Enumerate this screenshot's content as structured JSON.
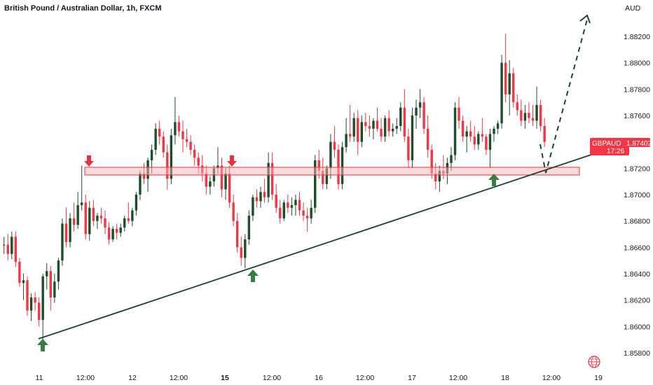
{
  "chart_data": {
    "type": "candlestick",
    "title": "British Pound / Australian Dollar, 1h, FXCM",
    "currency_label": "AUD",
    "symbol": "GBPAUD",
    "last_price": "1.87402",
    "countdown": "17:26",
    "ylim": [
      1.8572,
      1.8848
    ],
    "y_ticks": [
      "1.88200",
      "1.88000",
      "1.87800",
      "1.87600",
      "1.87400",
      "1.87200",
      "1.87000",
      "1.86800",
      "1.86600",
      "1.86400",
      "1.86200",
      "1.86000",
      "1.85800"
    ],
    "x_ticks": [
      {
        "label": "11",
        "bold": false
      },
      {
        "label": "12:00",
        "bold": false
      },
      {
        "label": "12",
        "bold": false
      },
      {
        "label": "12:00",
        "bold": false
      },
      {
        "label": "15",
        "bold": true
      },
      {
        "label": "12:00",
        "bold": false
      },
      {
        "label": "16",
        "bold": false
      },
      {
        "label": "12:00",
        "bold": false
      },
      {
        "label": "17",
        "bold": false
      },
      {
        "label": "12:00",
        "bold": false
      },
      {
        "label": "18",
        "bold": false
      },
      {
        "label": "12:00",
        "bold": false
      },
      {
        "label": "19",
        "bold": false
      }
    ],
    "candles": [
      [
        1.8662,
        1.8668,
        1.8655,
        1.8662
      ],
      [
        1.8662,
        1.867,
        1.865,
        1.8655
      ],
      [
        1.8655,
        1.8672,
        1.8651,
        1.8668
      ],
      [
        1.8668,
        1.8672,
        1.8645,
        1.8649
      ],
      [
        1.8649,
        1.8652,
        1.863,
        1.8633
      ],
      [
        1.8633,
        1.864,
        1.862,
        1.8635
      ],
      [
        1.8635,
        1.8638,
        1.8608,
        1.8612
      ],
      [
        1.8612,
        1.8625,
        1.8604,
        1.8622
      ],
      [
        1.8622,
        1.8626,
        1.8612,
        1.8618
      ],
      [
        1.8618,
        1.8622,
        1.86,
        1.8605
      ],
      [
        1.8605,
        1.864,
        1.859,
        1.8638
      ],
      [
        1.8638,
        1.8648,
        1.8628,
        1.8642
      ],
      [
        1.8642,
        1.8646,
        1.8612,
        1.8622
      ],
      [
        1.8622,
        1.864,
        1.8618,
        1.8634
      ],
      [
        1.8634,
        1.8652,
        1.8628,
        1.865
      ],
      [
        1.865,
        1.8682,
        1.8646,
        1.8678
      ],
      [
        1.8678,
        1.869,
        1.866,
        1.8664
      ],
      [
        1.8664,
        1.8686,
        1.866,
        1.8682
      ],
      [
        1.8682,
        1.8694,
        1.8672,
        1.8677
      ],
      [
        1.8677,
        1.8702,
        1.8674,
        1.8692
      ],
      [
        1.8692,
        1.8722,
        1.8688,
        1.8694
      ],
      [
        1.8694,
        1.87,
        1.8666,
        1.867
      ],
      [
        1.867,
        1.8695,
        1.8665,
        1.869
      ],
      [
        1.869,
        1.8696,
        1.8676,
        1.868
      ],
      [
        1.868,
        1.8686,
        1.8674,
        1.8684
      ],
      [
        1.8684,
        1.869,
        1.8678,
        1.8682
      ],
      [
        1.8682,
        1.8688,
        1.867,
        1.8675
      ],
      [
        1.8675,
        1.8679,
        1.8662,
        1.8666
      ],
      [
        1.8666,
        1.8676,
        1.8664,
        1.8674
      ],
      [
        1.8674,
        1.8678,
        1.8666,
        1.8671
      ],
      [
        1.8671,
        1.8678,
        1.8668,
        1.8675
      ],
      [
        1.8675,
        1.8684,
        1.8672,
        1.8682
      ],
      [
        1.8682,
        1.8694,
        1.8678,
        1.868
      ],
      [
        1.868,
        1.869,
        1.8676,
        1.8688
      ],
      [
        1.8688,
        1.8702,
        1.8684,
        1.87
      ],
      [
        1.87,
        1.8718,
        1.8696,
        1.8716
      ],
      [
        1.8716,
        1.8724,
        1.8708,
        1.8712
      ],
      [
        1.8712,
        1.8728,
        1.8702,
        1.8726
      ],
      [
        1.8726,
        1.8738,
        1.8716,
        1.8734
      ],
      [
        1.8734,
        1.8754,
        1.873,
        1.875
      ],
      [
        1.875,
        1.8756,
        1.8738,
        1.8744
      ],
      [
        1.8744,
        1.8748,
        1.8728,
        1.8732
      ],
      [
        1.8732,
        1.8738,
        1.8704,
        1.8712
      ],
      [
        1.8712,
        1.875,
        1.8708,
        1.8745
      ],
      [
        1.8745,
        1.8774,
        1.8738,
        1.8755
      ],
      [
        1.8755,
        1.876,
        1.8744,
        1.8748
      ],
      [
        1.8748,
        1.8756,
        1.8732,
        1.8742
      ],
      [
        1.8742,
        1.875,
        1.8736,
        1.874
      ],
      [
        1.874,
        1.8745,
        1.873,
        1.8734
      ],
      [
        1.8734,
        1.8738,
        1.8722,
        1.8728
      ],
      [
        1.8728,
        1.8732,
        1.8716,
        1.8722
      ],
      [
        1.8722,
        1.873,
        1.871,
        1.8716
      ],
      [
        1.8716,
        1.8722,
        1.87,
        1.8706
      ],
      [
        1.8706,
        1.8714,
        1.87,
        1.871
      ],
      [
        1.871,
        1.8722,
        1.8706,
        1.872
      ],
      [
        1.872,
        1.8736,
        1.8716,
        1.8722
      ],
      [
        1.8722,
        1.8728,
        1.8698,
        1.8704
      ],
      [
        1.8704,
        1.872,
        1.8696,
        1.8716
      ],
      [
        1.8716,
        1.8722,
        1.869,
        1.8694
      ],
      [
        1.8694,
        1.87,
        1.8676,
        1.868
      ],
      [
        1.868,
        1.8686,
        1.8656,
        1.866
      ],
      [
        1.866,
        1.8668,
        1.8646,
        1.8652
      ],
      [
        1.8652,
        1.867,
        1.8644,
        1.8666
      ],
      [
        1.8666,
        1.8688,
        1.8662,
        1.8684
      ],
      [
        1.8684,
        1.87,
        1.868,
        1.8698
      ],
      [
        1.8698,
        1.8704,
        1.869,
        1.8695
      ],
      [
        1.8695,
        1.8706,
        1.869,
        1.8702
      ],
      [
        1.8702,
        1.8712,
        1.8694,
        1.8698
      ],
      [
        1.8698,
        1.8732,
        1.8694,
        1.8724
      ],
      [
        1.8724,
        1.8732,
        1.8696,
        1.87
      ],
      [
        1.87,
        1.8708,
        1.8686,
        1.869
      ],
      [
        1.869,
        1.8696,
        1.8678,
        1.8682
      ],
      [
        1.8682,
        1.8696,
        1.868,
        1.8694
      ],
      [
        1.8694,
        1.87,
        1.8686,
        1.869
      ],
      [
        1.869,
        1.8698,
        1.8684,
        1.8692
      ],
      [
        1.8692,
        1.87,
        1.8684,
        1.8696
      ],
      [
        1.8696,
        1.8702,
        1.8684,
        1.8688
      ],
      [
        1.8688,
        1.8694,
        1.868,
        1.8684
      ],
      [
        1.8684,
        1.869,
        1.8672,
        1.8682
      ],
      [
        1.8682,
        1.8696,
        1.8678,
        1.869
      ],
      [
        1.869,
        1.873,
        1.8686,
        1.8726
      ],
      [
        1.8726,
        1.8734,
        1.8712,
        1.8718
      ],
      [
        1.8718,
        1.8728,
        1.8704,
        1.8708
      ],
      [
        1.8708,
        1.8722,
        1.8704,
        1.872
      ],
      [
        1.872,
        1.8746,
        1.8712,
        1.874
      ],
      [
        1.874,
        1.8752,
        1.8728,
        1.8734
      ],
      [
        1.8734,
        1.8738,
        1.8704,
        1.8708
      ],
      [
        1.8708,
        1.874,
        1.8704,
        1.8736
      ],
      [
        1.8736,
        1.8758,
        1.8732,
        1.8746
      ],
      [
        1.8746,
        1.8768,
        1.874,
        1.8744
      ],
      [
        1.8744,
        1.8762,
        1.874,
        1.8758
      ],
      [
        1.8758,
        1.8764,
        1.873,
        1.874
      ],
      [
        1.874,
        1.876,
        1.8736,
        1.8755
      ],
      [
        1.8755,
        1.8762,
        1.8748,
        1.8752
      ],
      [
        1.8752,
        1.876,
        1.8744,
        1.875
      ],
      [
        1.875,
        1.8758,
        1.8742,
        1.8756
      ],
      [
        1.8756,
        1.8766,
        1.8748,
        1.875
      ],
      [
        1.875,
        1.8758,
        1.874,
        1.8744
      ],
      [
        1.8744,
        1.876,
        1.874,
        1.8758
      ],
      [
        1.8758,
        1.8764,
        1.8744,
        1.8748
      ],
      [
        1.8748,
        1.8754,
        1.8744,
        1.875
      ],
      [
        1.875,
        1.8758,
        1.8746,
        1.8752
      ],
      [
        1.8752,
        1.877,
        1.8748,
        1.8766
      ],
      [
        1.8766,
        1.878,
        1.874,
        1.8744
      ],
      [
        1.8744,
        1.875,
        1.872,
        1.8726
      ],
      [
        1.8726,
        1.8766,
        1.872,
        1.876
      ],
      [
        1.876,
        1.8772,
        1.875,
        1.8766
      ],
      [
        1.8766,
        1.878,
        1.8758,
        1.877
      ],
      [
        1.877,
        1.8774,
        1.8746,
        1.875
      ],
      [
        1.875,
        1.876,
        1.8728,
        1.8734
      ],
      [
        1.8734,
        1.8738,
        1.8712,
        1.8716
      ],
      [
        1.8716,
        1.8724,
        1.8704,
        1.871
      ],
      [
        1.871,
        1.8722,
        1.8702,
        1.8718
      ],
      [
        1.8718,
        1.873,
        1.8712,
        1.8716
      ],
      [
        1.8716,
        1.8728,
        1.8708,
        1.8724
      ],
      [
        1.8724,
        1.8736,
        1.8718,
        1.873
      ],
      [
        1.873,
        1.877,
        1.8726,
        1.8766
      ],
      [
        1.8766,
        1.8774,
        1.875,
        1.8756
      ],
      [
        1.8756,
        1.876,
        1.874,
        1.8744
      ],
      [
        1.8744,
        1.8752,
        1.8732,
        1.8748
      ],
      [
        1.8748,
        1.8756,
        1.874,
        1.8744
      ],
      [
        1.8744,
        1.8752,
        1.8734,
        1.8738
      ],
      [
        1.8738,
        1.8748,
        1.8734,
        1.8746
      ],
      [
        1.8746,
        1.8758,
        1.874,
        1.8744
      ],
      [
        1.8744,
        1.8746,
        1.873,
        1.8734
      ],
      [
        1.8734,
        1.875,
        1.872,
        1.8746
      ],
      [
        1.8746,
        1.8752,
        1.874,
        1.875
      ],
      [
        1.875,
        1.8756,
        1.8746,
        1.8754
      ],
      [
        1.8754,
        1.8806,
        1.875,
        1.88
      ],
      [
        1.88,
        1.8822,
        1.877,
        1.8776
      ],
      [
        1.8776,
        1.8802,
        1.876,
        1.8792
      ],
      [
        1.8792,
        1.8796,
        1.8766,
        1.877
      ],
      [
        1.877,
        1.8776,
        1.876,
        1.8764
      ],
      [
        1.8764,
        1.8772,
        1.8752,
        1.8756
      ],
      [
        1.8756,
        1.8768,
        1.875,
        1.8762
      ],
      [
        1.8762,
        1.877,
        1.8754,
        1.8758
      ],
      [
        1.8758,
        1.8768,
        1.8752,
        1.8756
      ],
      [
        1.8756,
        1.8782,
        1.875,
        1.8768
      ],
      [
        1.8768,
        1.8772,
        1.8748,
        1.8752
      ],
      [
        1.8752,
        1.8758,
        1.8736,
        1.874
      ]
    ]
  }
}
